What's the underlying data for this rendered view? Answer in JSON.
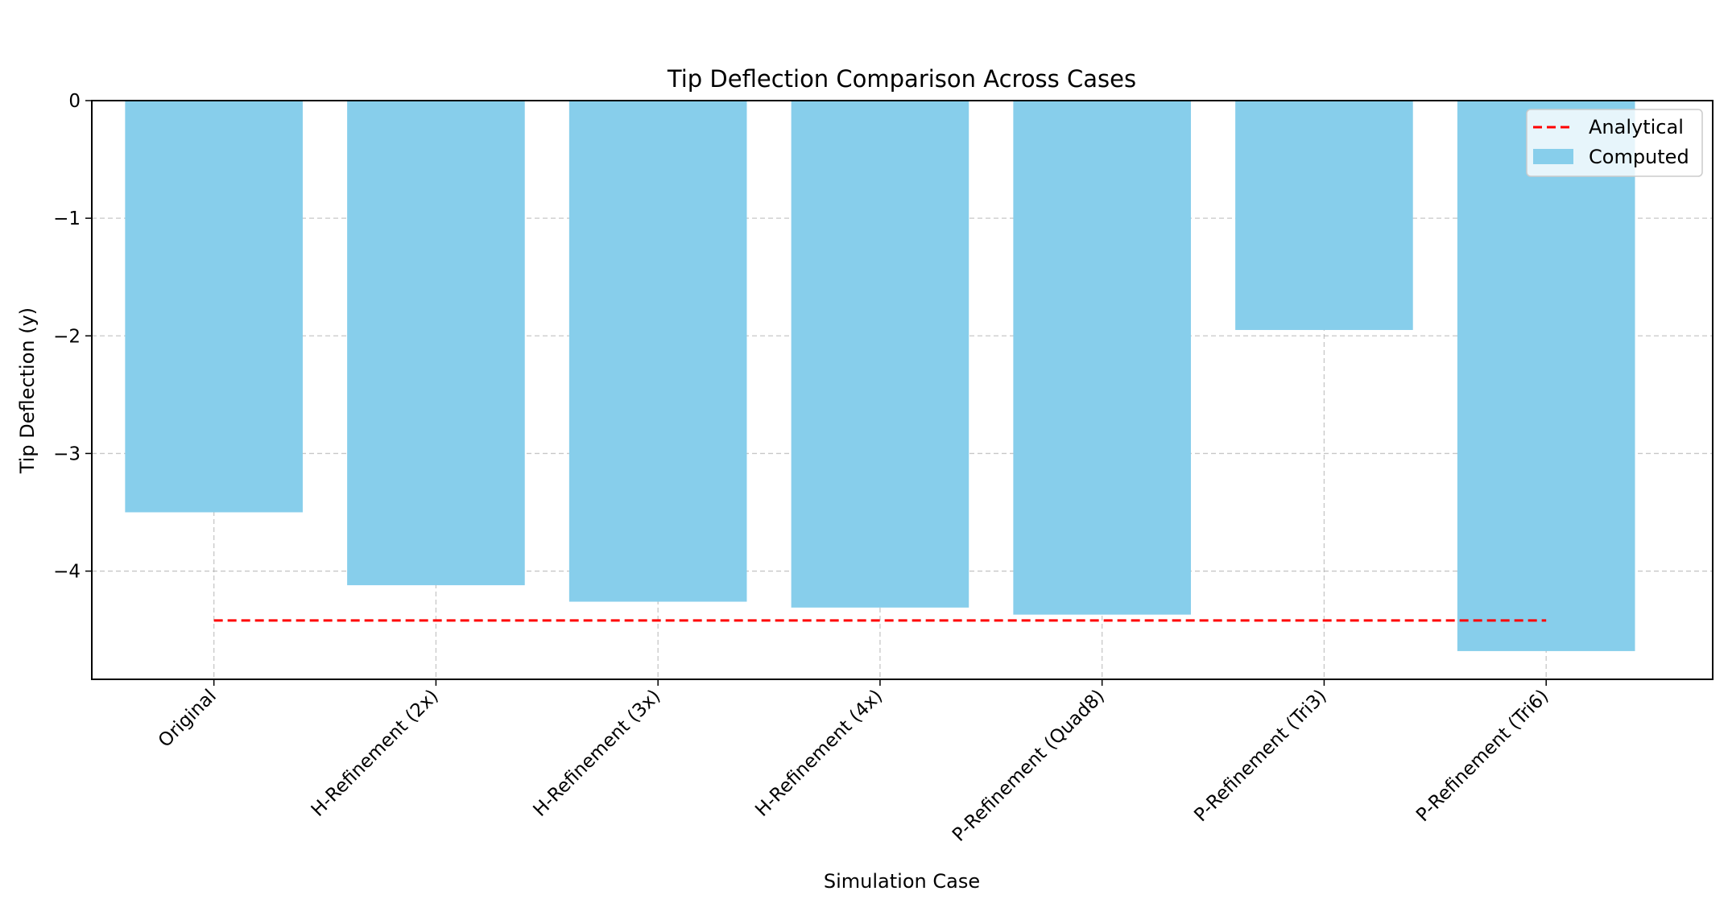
{
  "chart_data": {
    "type": "bar",
    "title": "Tip Deflection Comparison Across Cases",
    "xlabel": "Simulation Case",
    "ylabel": "Tip Deflection (y)",
    "categories": [
      "Original",
      "H-Refinement (2x)",
      "H-Refinement (3x)",
      "H-Refinement (4x)",
      "P-Refinement (Quad8)",
      "P-Refinement (Tri3)",
      "P-Refinement (Tri6)"
    ],
    "series": [
      {
        "name": "Computed",
        "type": "bar",
        "color": "#87ceeb",
        "values": [
          -3.5,
          -4.12,
          -4.26,
          -4.31,
          -4.37,
          -1.95,
          -4.68
        ]
      },
      {
        "name": "Analytical",
        "type": "line",
        "style": "dashed",
        "color": "#ff0000",
        "value": -4.42
      }
    ],
    "ylim": [
      -4.92,
      0
    ],
    "yticks": [
      0,
      -1,
      -2,
      -3,
      -4
    ],
    "ytick_labels": [
      "0",
      "−1",
      "−2",
      "−3",
      "−4"
    ],
    "grid": true,
    "legend_position": "upper right"
  }
}
